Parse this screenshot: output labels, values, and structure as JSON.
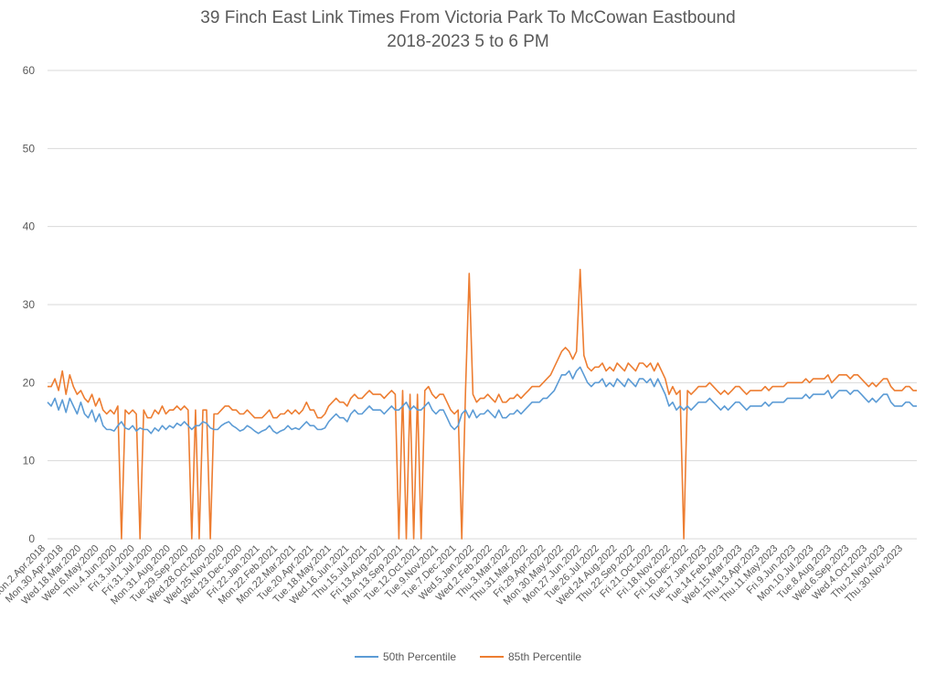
{
  "chart_data": {
    "type": "line",
    "title": "39 Finch East Link Times From Victoria Park To McCowan Eastbound",
    "subtitle": "2018-2023 5 to 6 PM",
    "xlabel": "",
    "ylabel": "",
    "ylim": [
      0,
      60
    ],
    "yticks": [
      0,
      10,
      20,
      30,
      40,
      50,
      60
    ],
    "legend": "bottom",
    "grid": true,
    "x_tick_labels": [
      "Mon.2.Apr.2018",
      "Mon.30.Apr.2018",
      "Wed.18.Mar.2020",
      "Wed.6.May.2020",
      "Thu.4.Jun.2020",
      "Fri.3.Jul.2020",
      "Fri.31.Jul.2020",
      "Mon.31.Aug.2020",
      "Tue.29.Sep.2020",
      "Wed.28.Oct.2020",
      "Wed.25.Nov.2020",
      "Wed.23.Dec.2020",
      "Fri.22.Jan.2021",
      "Mon.22.Feb.2021",
      "Mon.22.Mar.2021",
      "Tue.20.Apr.2021",
      "Tue.18.May.2021",
      "Wed.16.Jun.2021",
      "Thu.15.Jul.2021",
      "Fri.13.Aug.2021",
      "Mon.13.Sep.2021",
      "Tue.12.Oct.2021",
      "Tue.9.Nov.2021",
      "Tue.7.Dec.2021",
      "Wed.5.Jan.2022",
      "Wed.2.Feb.2022",
      "Thu.3.Mar.2022",
      "Thu.31.Mar.2022",
      "Fri.29.Apr.2022",
      "Mon.30.May.2022",
      "Mon.27.Jun.2022",
      "Tue.26.Jul.2022",
      "Wed.24.Aug.2022",
      "Thu.22.Sep.2022",
      "Fri.21.Oct.2022",
      "Fri.18.Nov.2022",
      "Fri.16.Dec.2022",
      "Tue.17.Jan.2023",
      "Tue.14.Feb.2023",
      "Wed.15.Mar.2023",
      "Thu.13.Apr.2023",
      "Thu.11.May.2023",
      "Fri.9.Jun.2023",
      "Mon.10.Jul.2023",
      "Tue.8.Aug.2023",
      "Wed.6.Sep.2023",
      "Wed.4.Oct.2023",
      "Thu.2.Nov.2023",
      "Thu.30.Nov.2023"
    ],
    "series": [
      {
        "name": "50th Percentile",
        "color": "#5B9BD5",
        "values": [
          17.5,
          17.0,
          18.0,
          16.5,
          17.8,
          16.2,
          18.0,
          17.0,
          16.0,
          17.5,
          16.0,
          15.5,
          16.5,
          15.0,
          16.0,
          14.5,
          14.0,
          14.0,
          13.8,
          14.5,
          15.0,
          14.2,
          14.0,
          14.5,
          13.8,
          14.2,
          14.0,
          14.0,
          13.5,
          14.2,
          13.8,
          14.5,
          14.0,
          14.5,
          14.2,
          14.8,
          14.5,
          15.0,
          14.5,
          14.0,
          14.5,
          14.5,
          15.0,
          14.8,
          14.2,
          14.0,
          14.0,
          14.5,
          14.8,
          15.0,
          14.5,
          14.2,
          13.8,
          14.0,
          14.5,
          14.2,
          13.8,
          13.5,
          13.8,
          14.0,
          14.5,
          13.8,
          13.5,
          13.8,
          14.0,
          14.5,
          14.0,
          14.2,
          14.0,
          14.5,
          15.0,
          14.5,
          14.5,
          14.0,
          14.0,
          14.2,
          15.0,
          15.5,
          16.0,
          15.5,
          15.5,
          15.0,
          16.0,
          16.5,
          16.0,
          16.0,
          16.5,
          17.0,
          16.5,
          16.5,
          16.5,
          16.0,
          16.5,
          17.0,
          16.5,
          16.5,
          17.0,
          17.5,
          16.5,
          17.0,
          16.5,
          16.5,
          17.0,
          17.5,
          16.5,
          16.0,
          16.5,
          16.5,
          15.5,
          14.5,
          14.0,
          14.5,
          16.0,
          16.5,
          15.5,
          16.5,
          15.5,
          16.0,
          16.0,
          16.5,
          16.0,
          15.5,
          16.5,
          15.5,
          15.5,
          16.0,
          16.0,
          16.5,
          16.0,
          16.5,
          17.0,
          17.5,
          17.5,
          17.5,
          18.0,
          18.0,
          18.5,
          19.0,
          20.0,
          21.0,
          21.0,
          21.5,
          20.5,
          21.5,
          22.0,
          21.0,
          20.0,
          19.5,
          20.0,
          20.0,
          20.5,
          19.5,
          20.0,
          19.5,
          20.5,
          20.0,
          19.5,
          20.5,
          20.0,
          19.5,
          20.5,
          20.5,
          20.0,
          20.5,
          19.5,
          20.5,
          19.5,
          18.5,
          17.0,
          17.5,
          16.5,
          17.0,
          16.5,
          17.0,
          16.5,
          17.0,
          17.5,
          17.5,
          17.5,
          18.0,
          17.5,
          17.0,
          16.5,
          17.0,
          16.5,
          17.0,
          17.5,
          17.5,
          17.0,
          16.5,
          17.0,
          17.0,
          17.0,
          17.0,
          17.5,
          17.0,
          17.5,
          17.5,
          17.5,
          17.5,
          18.0,
          18.0,
          18.0,
          18.0,
          18.0,
          18.5,
          18.0,
          18.5,
          18.5,
          18.5,
          18.5,
          19.0,
          18.0,
          18.5,
          19.0,
          19.0,
          19.0,
          18.5,
          19.0,
          19.0,
          18.5,
          18.0,
          17.5,
          18.0,
          17.5,
          18.0,
          18.5,
          18.5,
          17.5,
          17.0,
          17.0,
          17.0,
          17.5,
          17.5,
          17.0,
          17.0
        ]
      },
      {
        "name": "85th Percentile",
        "color": "#ED7D31",
        "values": [
          19.5,
          19.5,
          20.5,
          19.0,
          21.5,
          18.5,
          21.0,
          19.5,
          18.5,
          19.0,
          18.0,
          17.5,
          18.5,
          17.0,
          18.0,
          16.5,
          16.0,
          16.5,
          16.0,
          17.0,
          0,
          16.5,
          16.0,
          16.5,
          16.0,
          0,
          16.5,
          15.5,
          15.5,
          16.5,
          16.0,
          17.0,
          16.0,
          16.5,
          16.5,
          17.0,
          16.5,
          17.0,
          16.5,
          0,
          16.5,
          0,
          16.5,
          16.5,
          0,
          16.0,
          16.0,
          16.5,
          17.0,
          17.0,
          16.5,
          16.5,
          16.0,
          16.0,
          16.5,
          16.0,
          15.5,
          15.5,
          15.5,
          16.0,
          16.5,
          15.5,
          15.5,
          16.0,
          16.0,
          16.5,
          16.0,
          16.5,
          16.0,
          16.5,
          17.5,
          16.5,
          16.5,
          15.5,
          15.5,
          16.0,
          17.0,
          17.5,
          18.0,
          17.5,
          17.5,
          17.0,
          18.0,
          18.5,
          18.0,
          18.0,
          18.5,
          19.0,
          18.5,
          18.5,
          18.5,
          18.0,
          18.5,
          19.0,
          18.5,
          0,
          19.0,
          0,
          18.5,
          0,
          18.5,
          0,
          19.0,
          19.5,
          18.5,
          18.0,
          18.5,
          18.5,
          17.5,
          16.5,
          16.0,
          16.5,
          0,
          19.0,
          34.0,
          18.5,
          17.5,
          18.0,
          18.0,
          18.5,
          18.0,
          17.5,
          18.5,
          17.5,
          17.5,
          18.0,
          18.0,
          18.5,
          18.0,
          18.5,
          19.0,
          19.5,
          19.5,
          19.5,
          20.0,
          20.5,
          21.0,
          22.0,
          23.0,
          24.0,
          24.5,
          24.0,
          23.0,
          24.0,
          34.5,
          23.5,
          22.0,
          21.5,
          22.0,
          22.0,
          22.5,
          21.5,
          22.0,
          21.5,
          22.5,
          22.0,
          21.5,
          22.5,
          22.0,
          21.5,
          22.5,
          22.5,
          22.0,
          22.5,
          21.5,
          22.5,
          21.5,
          20.5,
          18.5,
          19.5,
          18.5,
          19.0,
          0,
          19.0,
          18.5,
          19.0,
          19.5,
          19.5,
          19.5,
          20.0,
          19.5,
          19.0,
          18.5,
          19.0,
          18.5,
          19.0,
          19.5,
          19.5,
          19.0,
          18.5,
          19.0,
          19.0,
          19.0,
          19.0,
          19.5,
          19.0,
          19.5,
          19.5,
          19.5,
          19.5,
          20.0,
          20.0,
          20.0,
          20.0,
          20.0,
          20.5,
          20.0,
          20.5,
          20.5,
          20.5,
          20.5,
          21.0,
          20.0,
          20.5,
          21.0,
          21.0,
          21.0,
          20.5,
          21.0,
          21.0,
          20.5,
          20.0,
          19.5,
          20.0,
          19.5,
          20.0,
          20.5,
          20.5,
          19.5,
          19.0,
          19.0,
          19.0,
          19.5,
          19.5,
          19.0,
          19.0
        ]
      }
    ]
  }
}
